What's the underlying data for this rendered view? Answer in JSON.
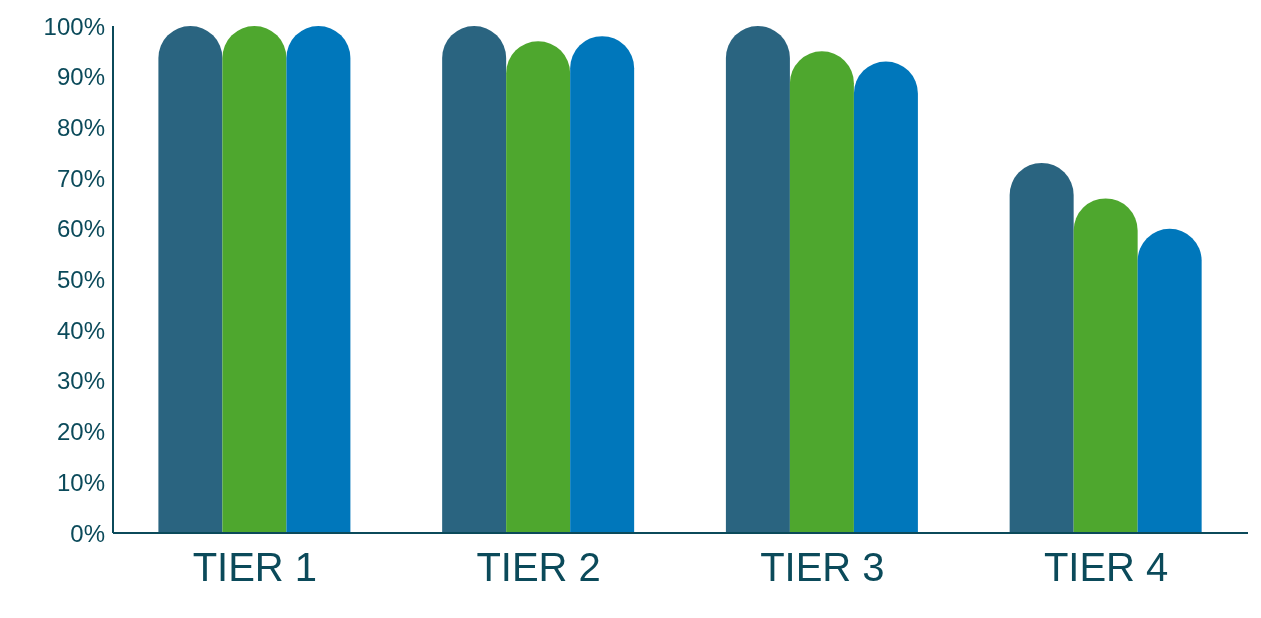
{
  "chart_data": {
    "type": "bar",
    "categories": [
      "TIER 1",
      "TIER 2",
      "TIER 3",
      "TIER 4"
    ],
    "series": [
      {
        "color": "#2a6480",
        "values": [
          100,
          100,
          100,
          73
        ]
      },
      {
        "color": "#4ea72e",
        "values": [
          100,
          97,
          95,
          66
        ]
      },
      {
        "color": "#0077bb",
        "values": [
          100,
          98,
          93,
          60
        ]
      }
    ],
    "ylim": [
      0,
      100
    ],
    "yticks": [
      {
        "value": 0,
        "label": "0%"
      },
      {
        "value": 10,
        "label": "10%"
      },
      {
        "value": 20,
        "label": "20%"
      },
      {
        "value": 30,
        "label": "30%"
      },
      {
        "value": 40,
        "label": "40%"
      },
      {
        "value": 50,
        "label": "50%"
      },
      {
        "value": 60,
        "label": "60%"
      },
      {
        "value": 70,
        "label": "70%"
      },
      {
        "value": 80,
        "label": "80%"
      },
      {
        "value": 90,
        "label": "90%"
      },
      {
        "value": 100,
        "label": "100%"
      }
    ],
    "grid": false,
    "legend": false
  }
}
